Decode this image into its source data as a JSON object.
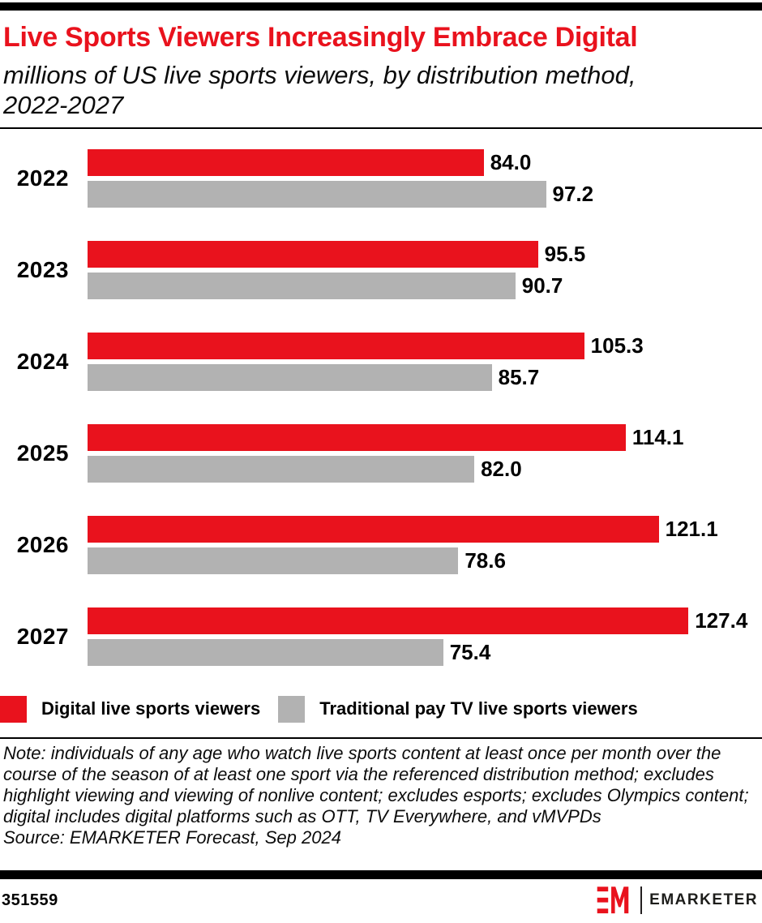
{
  "page": {
    "header": {
      "title": "Live Sports Viewers Increasingly Embrace Digital",
      "subtitle": "millions of US live sports viewers, by distribution method, 2022-2027"
    },
    "note": {
      "text": "Note: individuals of any age who watch live sports content at least once per month over the course of the season of at least one sport via the referenced distribution method; excludes highlight viewing and viewing of nonlive content; excludes esports; excludes Olympics content; digital includes digital platforms such as OTT, TV Everywhere, and vMVPDs",
      "source": "Source: EMARKETER Forecast, Sep 2024"
    },
    "footer": {
      "chart_id": "351559",
      "brand": "EMARKETER"
    },
    "colors": {
      "accent_red": "#e9121d",
      "bar_gray": "#b2b2b2",
      "text_black": "#000000"
    }
  },
  "chart_data": {
    "type": "bar",
    "orientation": "horizontal",
    "title": "Live Sports Viewers Increasingly Embrace Digital",
    "subtitle": "millions of US live sports viewers, by distribution method, 2022-2027",
    "categories": [
      "2022",
      "2023",
      "2024",
      "2025",
      "2026",
      "2027"
    ],
    "series": [
      {
        "name": "Digital live sports viewers",
        "color": "#e9121d",
        "values": [
          84.0,
          95.5,
          105.3,
          114.1,
          121.1,
          127.4
        ]
      },
      {
        "name": "Traditional pay TV live sports viewers",
        "color": "#b2b2b2",
        "values": [
          97.2,
          90.7,
          85.7,
          82.0,
          78.6,
          75.4
        ]
      }
    ],
    "value_label_decimals": 1,
    "xlim": [
      0,
      143
    ],
    "grid": false,
    "legend_position": "bottom"
  }
}
